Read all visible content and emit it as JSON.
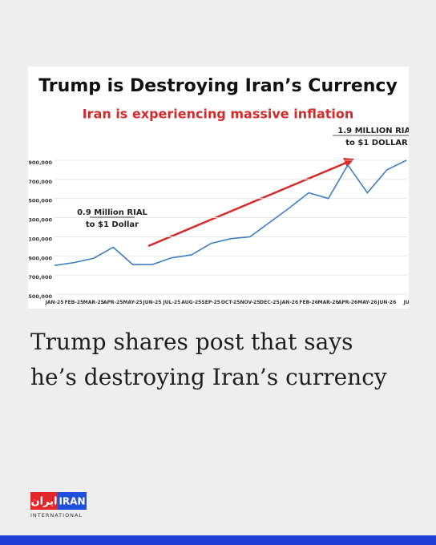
{
  "chart_data": {
    "type": "line",
    "title": "Trump is Destroying Iran’s Currency",
    "subtitle": "Iran is experiencing massive inflation",
    "categories": [
      "JAN-25",
      "FEB-25",
      "MAR-25",
      "APR-25",
      "MAY-25",
      "JUN-25",
      "JUL-25",
      "AUG-25",
      "SEP-25",
      "OCT-25",
      "NOV-25",
      "DEC-25",
      "JAN-26",
      "FEB-26",
      "MAR-26",
      "APR-26",
      "MAY-26",
      "JUN-26",
      "JU"
    ],
    "values": [
      800000,
      830000,
      875000,
      990000,
      810000,
      810000,
      880000,
      910000,
      1030000,
      1080000,
      1100000,
      1250000,
      1400000,
      1560000,
      1500000,
      1850000,
      1560000,
      1800000,
      1900000
    ],
    "color": "#3d7fc4",
    "ylim": [
      500000,
      1950000
    ],
    "yticks": [
      {
        "value": 500000,
        "label": "500,000"
      },
      {
        "value": 700000,
        "label": "700,000"
      },
      {
        "value": 900000,
        "label": "900,000"
      },
      {
        "value": 1100000,
        "label": ",100,000"
      },
      {
        "value": 1300000,
        "label": ",300,000"
      },
      {
        "value": 1500000,
        "label": ",500,000"
      },
      {
        "value": 1700000,
        "label": ",700,000"
      },
      {
        "value": 1900000,
        "label": ",900,000"
      }
    ],
    "grid": true,
    "annotations": [
      [
        "0.9 Million RIAL",
        "to $1 Dollar"
      ],
      [
        "1.9 MILLION RIAL",
        "to $1 DOLLAR"
      ]
    ]
  },
  "headline": [
    "Trump shares post that says",
    "he’s destroying Iran’s currency"
  ],
  "logo": {
    "arabic": "ایران",
    "latin": "IRAN",
    "sub": "INTERNATIONAL"
  }
}
